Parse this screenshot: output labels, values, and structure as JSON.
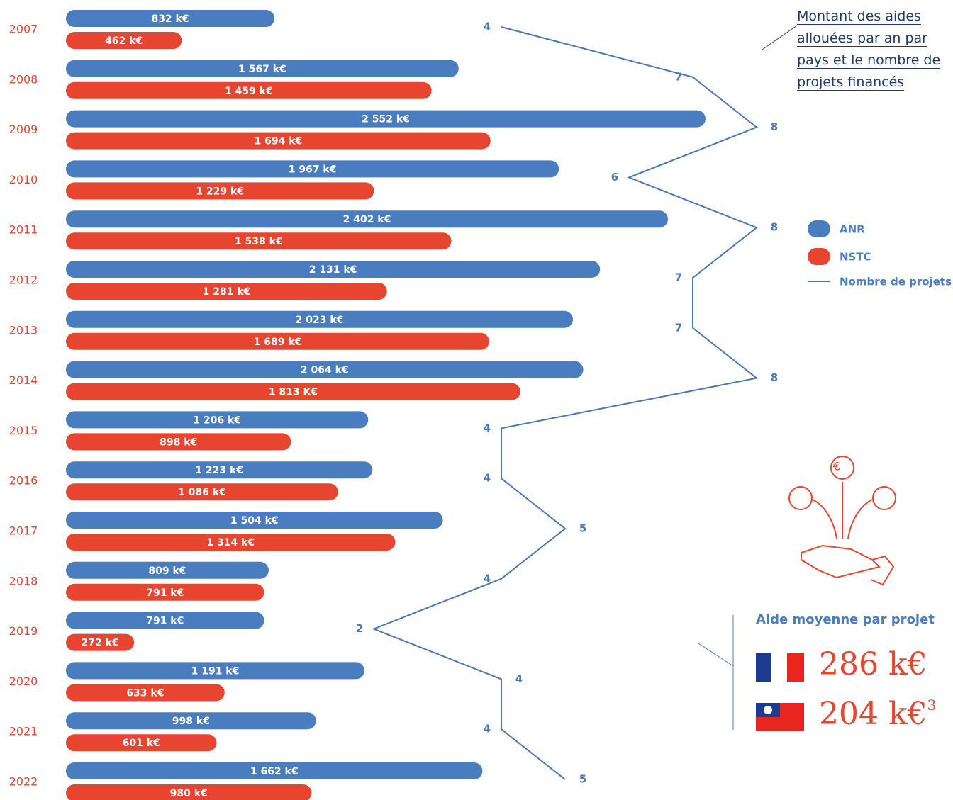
{
  "chart_data": {
    "type": "bar",
    "categories": [
      "2007",
      "2008",
      "2009",
      "2010",
      "2011",
      "2012",
      "2013",
      "2014",
      "2015",
      "2016",
      "2017",
      "2018",
      "2019",
      "2020",
      "2021",
      "2022"
    ],
    "series": [
      {
        "name": "ANR",
        "color": "#4a7cc0",
        "values": [
          832,
          1567,
          2552,
          1967,
          2402,
          2131,
          2023,
          2064,
          1206,
          1223,
          1504,
          809,
          791,
          1191,
          998,
          1662
        ],
        "value_labels": [
          "832 k€",
          "1 567 k€",
          "2 552 k€",
          "1 967 k€",
          "2 402 k€",
          "2 131 k€",
          "2 023 k€",
          "2 064 k€",
          "1 206 k€",
          "1 223 k€",
          "1 504 k€",
          "809 k€",
          "791 k€",
          "1 191 k€",
          "998 k€",
          "1 662 k€"
        ]
      },
      {
        "name": "NSTC",
        "color": "#e84530",
        "values": [
          462,
          1459,
          1694,
          1229,
          1538,
          1281,
          1689,
          1813,
          898,
          1086,
          1314,
          791,
          272,
          633,
          601,
          980
        ],
        "value_labels": [
          "462 k€",
          "1 459 k€",
          "1 694 k€",
          "1 229 k€",
          "1 538 k€",
          "1 281 k€",
          "1 689 k€",
          "1 813 K€",
          "898 k€",
          "1 086 k€",
          "1 314 k€",
          "791 k€",
          "272 k€",
          "633 k€",
          "601 k€",
          "980 k€"
        ]
      },
      {
        "name": "Nombre de projets",
        "type": "line",
        "color": "#4a76b8",
        "values": [
          4,
          7,
          8,
          6,
          8,
          7,
          7,
          8,
          4,
          4,
          5,
          4,
          2,
          4,
          4,
          5
        ]
      }
    ],
    "annotation": "Montant des aides allouées par an par pays et le nombre de projets financés"
  },
  "average": {
    "title": "Aide moyenne par projet",
    "france": "286 k€",
    "taiwan": "204 k€",
    "taiwan_note": "3"
  }
}
